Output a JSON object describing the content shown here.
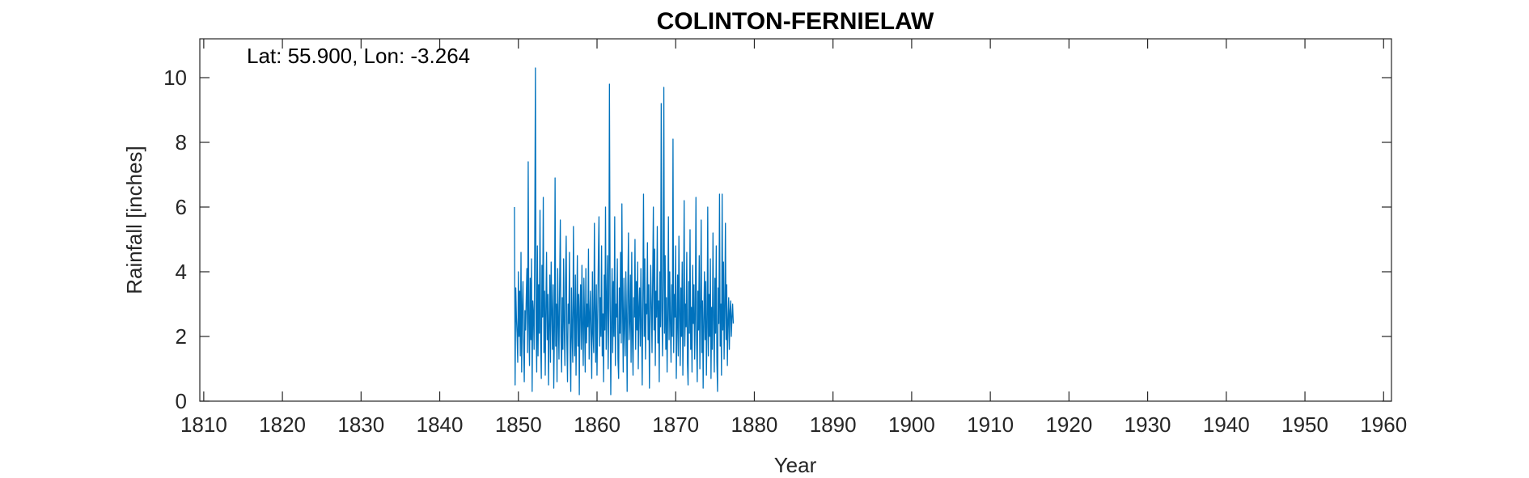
{
  "chart_data": {
    "type": "line",
    "title": "COLINTON-FERNIELAW",
    "annotation": "Lat: 55.900, Lon: -3.264",
    "xlabel": "Year",
    "ylabel": "Rainfall [inches]",
    "xlim": [
      1809.5,
      1961
    ],
    "ylim": [
      0,
      11.2
    ],
    "xticks": [
      1810,
      1820,
      1830,
      1840,
      1850,
      1860,
      1870,
      1880,
      1890,
      1900,
      1910,
      1920,
      1930,
      1940,
      1950,
      1960
    ],
    "yticks": [
      0,
      2,
      4,
      6,
      8,
      10
    ],
    "grid": false,
    "box": true,
    "series": [
      {
        "color": "#0072BD",
        "x_start": 1849.5,
        "x_step": 0.0833,
        "values": [
          6.0,
          0.5,
          3.5,
          2.6,
          2.1,
          1.2,
          4.0,
          2.0,
          3.4,
          1.4,
          4.6,
          0.9,
          2.9,
          3.7,
          1.8,
          0.6,
          2.8,
          2.2,
          3.2,
          4.1,
          1.5,
          7.4,
          2.4,
          1.1,
          3.8,
          1.9,
          4.4,
          0.3,
          3.1,
          2.7,
          1.6,
          5.2,
          10.3,
          2.3,
          0.9,
          4.8,
          1.4,
          3.6,
          2.1,
          5.9,
          1.8,
          0.7,
          4.2,
          2.6,
          6.3,
          1.5,
          3.4,
          0.8,
          2.9,
          4.6,
          1.9,
          3.3,
          0.5,
          2.4,
          3.9,
          1.2,
          4.3,
          2.8,
          1.6,
          3.6,
          0.4,
          2.2,
          6.9,
          1.7,
          3.0,
          0.6,
          4.1,
          2.5,
          1.3,
          3.7,
          5.6,
          2.0,
          0.9,
          3.2,
          1.6,
          4.4,
          2.3,
          1.1,
          3.8,
          5.1,
          1.9,
          0.6,
          3.0,
          2.4,
          4.6,
          1.5,
          0.3,
          3.5,
          2.1,
          1.2,
          5.4,
          2.7,
          1.4,
          3.9,
          0.8,
          2.6,
          4.5,
          1.7,
          3.3,
          0.2,
          2.9,
          3.6,
          1.6,
          4.2,
          2.2,
          1.1,
          3.8,
          2.5,
          0.9,
          4.1,
          1.8,
          3.0,
          2.3,
          4.7,
          1.3,
          2.6,
          3.4,
          1.9,
          0.7,
          4.0,
          2.1,
          1.5,
          5.5,
          2.8,
          1.2,
          3.6,
          0.8,
          2.5,
          4.3,
          5.7,
          1.7,
          3.2,
          2.0,
          4.8,
          1.4,
          2.7,
          0.6,
          3.9,
          2.2,
          6.0,
          1.6,
          3.1,
          4.5,
          1.0,
          2.8,
          9.8,
          3.3,
          0.2,
          2.4,
          4.1,
          1.5,
          3.7,
          2.0,
          5.7,
          1.1,
          3.0,
          2.6,
          4.4,
          1.3,
          0.7,
          3.5,
          2.1,
          4.6,
          1.8,
          6.1,
          2.9,
          0.9,
          3.8,
          2.3,
          1.4,
          4.0,
          2.7,
          0.3,
          3.4,
          5.2,
          1.9,
          2.5,
          3.9,
          1.2,
          4.6,
          2.0,
          0.8,
          3.2,
          2.6,
          5.0,
          1.6,
          3.7,
          2.2,
          4.3,
          1.0,
          2.9,
          3.5,
          1.7,
          4.1,
          2.4,
          0.5,
          3.3,
          6.4,
          2.0,
          4.4,
          1.3,
          3.0,
          2.7,
          4.9,
          1.9,
          3.6,
          0.4,
          2.5,
          4.2,
          2.9,
          1.5,
          3.8,
          6.0,
          2.2,
          4.7,
          1.1,
          3.4,
          2.6,
          5.4,
          1.8,
          3.1,
          0.6,
          4.0,
          2.3,
          9.2,
          2.8,
          1.4,
          3.9,
          9.7,
          2.1,
          4.5,
          1.6,
          3.2,
          0.9,
          2.7,
          5.7,
          1.9,
          4.0,
          2.4,
          1.2,
          3.6,
          2.0,
          8.1,
          1.5,
          3.3,
          2.6,
          4.8,
          0.7,
          2.2,
          3.9,
          1.4,
          5.1,
          2.8,
          1.1,
          3.5,
          2.0,
          4.3,
          0.8,
          2.6,
          6.2,
          1.7,
          3.0,
          2.3,
          4.6,
          1.2,
          0.5,
          3.7,
          2.1,
          5.3,
          1.6,
          2.9,
          0.9,
          4.2,
          2.4,
          3.6,
          1.3,
          2.7,
          6.3,
          1.8,
          0.6,
          3.4,
          2.2,
          4.5,
          1.0,
          2.8,
          5.6,
          1.5,
          3.1,
          0.4,
          2.5,
          4.0,
          1.9,
          3.7,
          0.8,
          2.3,
          6.0,
          1.4,
          3.3,
          2.0,
          4.4,
          0.7,
          2.9,
          1.6,
          5.2,
          2.6,
          0.9,
          3.8,
          2.1,
          4.8,
          1.2,
          0.3,
          3.5,
          2.4,
          6.4,
          1.7,
          3.0,
          0.8,
          6.4,
          2.2,
          4.3,
          1.3,
          2.8,
          5.5,
          1.9,
          3.6,
          1.1,
          2.5,
          3.2,
          1.6,
          2.8,
          3.1,
          2.0,
          2.6,
          3.0,
          2.4
        ]
      }
    ]
  }
}
